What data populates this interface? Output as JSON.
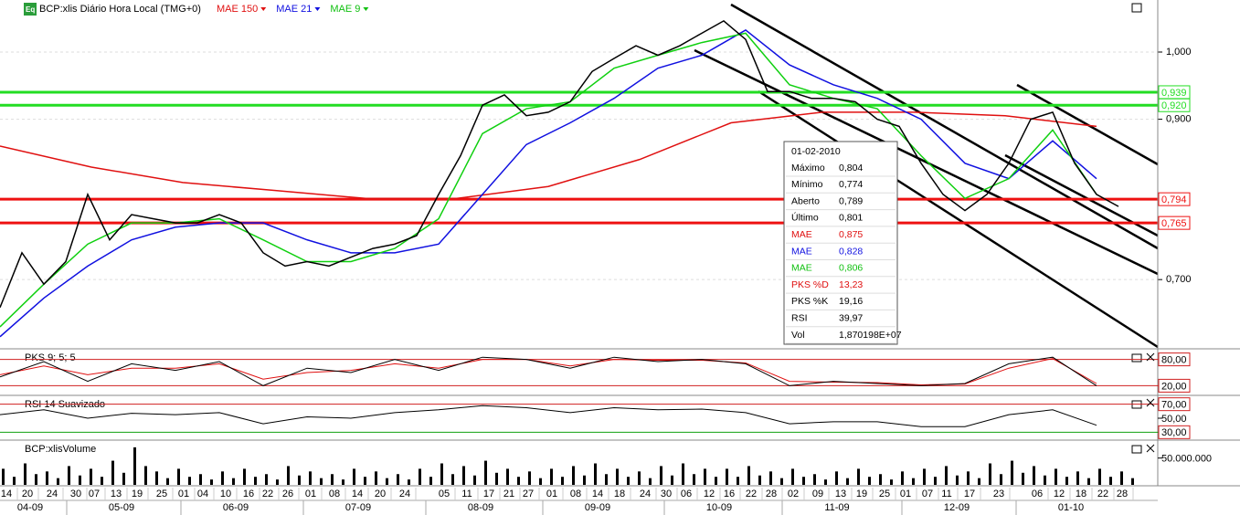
{
  "header": {
    "title": "BCP:xlis Diário Hora Local (TMG+0)",
    "icon": "Eq",
    "indicators": [
      {
        "name": "MAE 150",
        "color": "#e01010"
      },
      {
        "name": "MAE 21",
        "color": "#1010e0"
      },
      {
        "name": "MAE 9",
        "color": "#10c010"
      }
    ]
  },
  "price": {
    "ylim": [
      0.628,
      1.085
    ],
    "log": true,
    "yticks": [
      {
        "value": 1.0,
        "label": "1,000"
      },
      {
        "value": 0.9,
        "label": "0,900"
      },
      {
        "value": 0.7,
        "label": "0,700"
      }
    ],
    "levels": [
      {
        "value": 0.939,
        "label": "0,939",
        "color": "#22dd22"
      },
      {
        "value": 0.92,
        "label": "0,920",
        "color": "#22dd22"
      },
      {
        "value": 0.794,
        "label": "0,794",
        "color": "#ee1111"
      },
      {
        "value": 0.765,
        "label": "0,765",
        "color": "#ee1111"
      }
    ],
    "close": [
      0.67,
      0.73,
      0.695,
      0.72,
      0.8,
      0.745,
      0.775,
      0.77,
      0.765,
      0.765,
      0.775,
      0.765,
      0.73,
      0.715,
      0.72,
      0.715,
      0.725,
      0.735,
      0.74,
      0.75,
      0.8,
      0.85,
      0.92,
      0.935,
      0.905,
      0.91,
      0.925,
      0.97,
      0.99,
      1.01,
      0.995,
      1.01,
      1.03,
      1.05,
      1.02,
      0.94,
      0.94,
      0.93,
      0.93,
      0.925,
      0.9,
      0.89,
      0.84,
      0.8,
      0.78,
      0.8,
      0.84,
      0.9,
      0.91,
      0.84,
      0.8,
      0.785
    ],
    "mae9": [
      0.65,
      0.695,
      0.74,
      0.765,
      0.765,
      0.77,
      0.745,
      0.72,
      0.72,
      0.735,
      0.77,
      0.88,
      0.915,
      0.925,
      0.975,
      0.995,
      1.015,
      1.03,
      0.95,
      0.93,
      0.915,
      0.85,
      0.795,
      0.82,
      0.885,
      0.8
    ],
    "mae21": [
      0.64,
      0.68,
      0.715,
      0.745,
      0.76,
      0.765,
      0.765,
      0.745,
      0.73,
      0.73,
      0.74,
      0.8,
      0.865,
      0.895,
      0.93,
      0.975,
      0.995,
      1.035,
      0.98,
      0.95,
      0.93,
      0.9,
      0.84,
      0.82,
      0.87,
      0.82
    ],
    "mae150": [
      0.863,
      0.835,
      0.815,
      0.805,
      0.795,
      0.795,
      0.81,
      0.845,
      0.895,
      0.91,
      0.91,
      0.905,
      0.89
    ]
  },
  "tooltip": {
    "date": "01-02-2010",
    "rows": [
      [
        "Máximo",
        "0,804"
      ],
      [
        "Mínimo",
        "0,774"
      ],
      [
        "Aberto",
        "0,789"
      ],
      [
        "Último",
        "0,801"
      ],
      [
        "MAE",
        "0,875"
      ],
      [
        "MAE",
        "0,828"
      ],
      [
        "MAE",
        "0,806"
      ],
      [
        "PKS %D",
        "13,23"
      ],
      [
        "PKS %K",
        "19,16"
      ],
      [
        "RSI",
        "39,97"
      ],
      [
        "Vol",
        "1,870198E+07"
      ]
    ]
  },
  "pks": {
    "title": "PKS 9; 5; 5",
    "ylim": [
      0,
      100
    ],
    "yticks": [
      {
        "value": 80,
        "label": "80,00"
      },
      {
        "value": 20,
        "label": "20,00"
      }
    ],
    "k": [
      40,
      75,
      30,
      70,
      55,
      75,
      20,
      60,
      50,
      80,
      55,
      85,
      80,
      60,
      85,
      75,
      80,
      70,
      20,
      30,
      25,
      20,
      25,
      70,
      85,
      20
    ],
    "d": [
      45,
      65,
      45,
      60,
      60,
      70,
      35,
      50,
      55,
      70,
      60,
      80,
      80,
      65,
      80,
      78,
      78,
      72,
      30,
      28,
      27,
      22,
      24,
      60,
      82,
      25
    ]
  },
  "rsi": {
    "title": "RSI 14 Suavizado",
    "ylim": [
      20,
      80
    ],
    "yticks": [
      {
        "value": 70,
        "label": "70,00"
      },
      {
        "value": 50,
        "label": "50,00"
      },
      {
        "value": 30,
        "label": "30,00"
      }
    ],
    "values": [
      55,
      62,
      50,
      57,
      55,
      58,
      42,
      52,
      50,
      58,
      62,
      68,
      65,
      58,
      65,
      62,
      63,
      58,
      42,
      45,
      45,
      38,
      38,
      55,
      62,
      40
    ]
  },
  "volume": {
    "title": "BCP:xlisVolume",
    "ylim": [
      0,
      80000000
    ],
    "yticks": [
      {
        "value": 50000000,
        "label": "50.000.000"
      }
    ],
    "values": [
      30000000,
      40000000,
      25000000,
      35000000,
      30000000,
      45000000,
      70000000,
      25000000,
      30000000,
      20000000,
      25000000,
      30000000,
      20000000,
      35000000,
      25000000,
      20000000,
      30000000,
      25000000,
      20000000,
      30000000,
      40000000,
      35000000,
      45000000,
      30000000,
      25000000,
      30000000,
      35000000,
      40000000,
      30000000,
      25000000,
      35000000,
      40000000,
      30000000,
      30000000,
      35000000,
      25000000,
      30000000,
      20000000,
      25000000,
      30000000,
      20000000,
      25000000,
      30000000,
      35000000,
      25000000,
      40000000,
      45000000,
      35000000,
      30000000,
      25000000,
      30000000,
      25000000
    ]
  },
  "x_axis": {
    "days": [
      "14",
      "20",
      "24",
      "30",
      "07",
      "13",
      "19",
      "25",
      "01",
      "04",
      "10",
      "16",
      "22",
      "26",
      "01",
      "08",
      "14",
      "20",
      "24",
      "05",
      "11",
      "17",
      "21",
      "27",
      "01",
      "08",
      "14",
      "18",
      "24",
      "30",
      "06",
      "12",
      "16",
      "22",
      "28",
      "02",
      "09",
      "13",
      "19",
      "25",
      "01",
      "07",
      "11",
      "17",
      "23",
      "06",
      "12",
      "18",
      "22",
      "28"
    ],
    "months": [
      "04-09",
      "05-09",
      "06-09",
      "07-09",
      "08-09",
      "09-09",
      "10-09",
      "11-09",
      "12-09",
      "01-10"
    ]
  }
}
